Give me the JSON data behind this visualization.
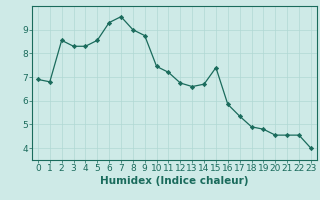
{
  "x": [
    0,
    1,
    2,
    3,
    4,
    5,
    6,
    7,
    8,
    9,
    10,
    11,
    12,
    13,
    14,
    15,
    16,
    17,
    18,
    19,
    20,
    21,
    22,
    23
  ],
  "y": [
    6.9,
    6.8,
    8.55,
    8.3,
    8.3,
    8.55,
    9.3,
    9.55,
    9.0,
    8.75,
    7.45,
    7.2,
    6.75,
    6.6,
    6.7,
    7.4,
    5.85,
    5.35,
    4.9,
    4.8,
    4.55,
    4.55,
    4.55,
    4.0
  ],
  "line_color": "#1a6b5c",
  "marker": "D",
  "marker_size": 2.2,
  "bg_color": "#ceeae7",
  "grid_color": "#b0d8d4",
  "xlabel": "Humidex (Indice chaleur)",
  "xlim": [
    -0.5,
    23.5
  ],
  "ylim": [
    3.5,
    10.0
  ],
  "yticks": [
    4,
    5,
    6,
    7,
    8,
    9
  ],
  "xticks": [
    0,
    1,
    2,
    3,
    4,
    5,
    6,
    7,
    8,
    9,
    10,
    11,
    12,
    13,
    14,
    15,
    16,
    17,
    18,
    19,
    20,
    21,
    22,
    23
  ],
  "tick_color": "#1a6b5c",
  "axis_color": "#1a6b5c",
  "label_fontsize": 7.5,
  "tick_fontsize": 6.5
}
